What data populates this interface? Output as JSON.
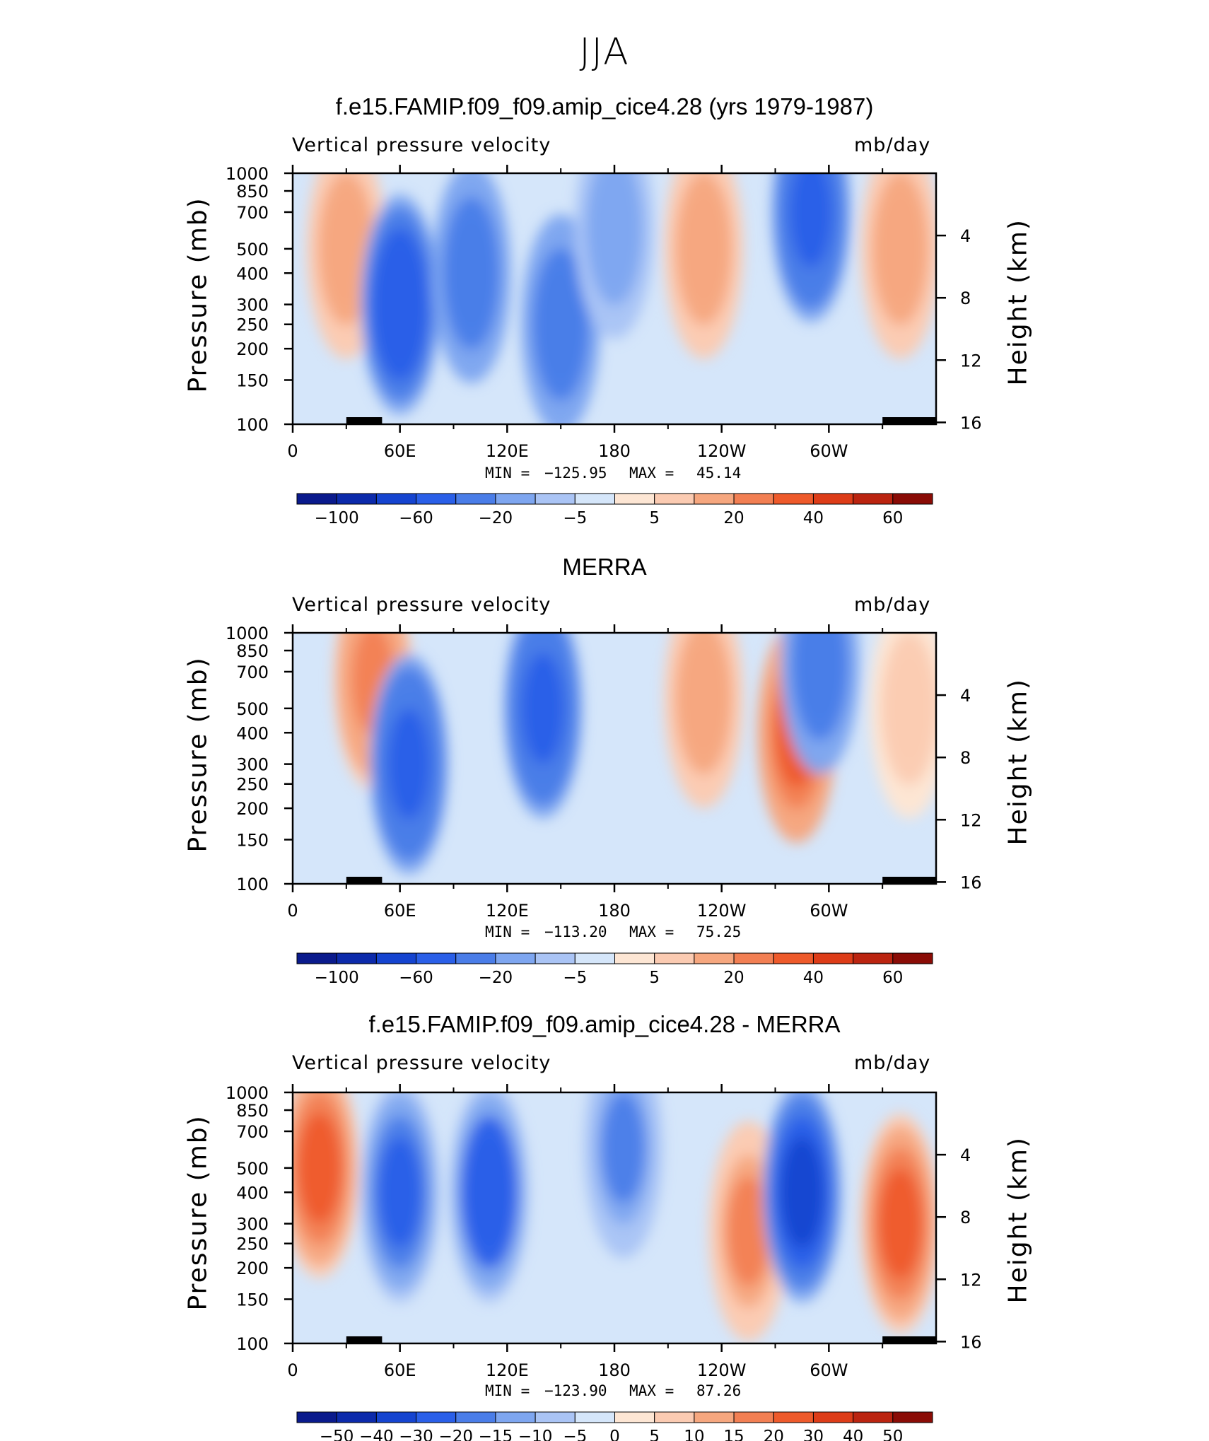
{
  "page_title": "JJA",
  "colors": {
    "main_scale": [
      "#0a1a8c",
      "#0c2aab",
      "#1544d0",
      "#2a5fe8",
      "#4a7de8",
      "#7ea6f0",
      "#aac4f5",
      "#d5e6fa",
      "#fde6d4",
      "#fbcbb2",
      "#f6a77f",
      "#f27f53",
      "#ee5a2b",
      "#dd3c18",
      "#bb2410",
      "#8a0c06"
    ],
    "diff_scale": [
      "#0a1a8c",
      "#0c2aab",
      "#1544d0",
      "#2a5fe8",
      "#4a7de8",
      "#7ea6f0",
      "#aac4f5",
      "#d5e6fa",
      "#fde6d4",
      "#fbcbb2",
      "#f6a77f",
      "#f27f53",
      "#ee5a2b",
      "#dd3c18",
      "#bb2410",
      "#8a0c06"
    ]
  },
  "panels": [
    {
      "title": "f.e15.FAMIP.f09_f09.amip_cice4.28 (yrs 1979-1987)",
      "left_label": "Vertical pressure velocity",
      "right_label": "mb/day",
      "ylabel": "Pressure (mb)",
      "y2label": "Height (km)",
      "min_label": "MIN =",
      "min_value": "−125.95",
      "max_label": "MAX =",
      "max_value": "45.14",
      "colorbar_labels": [
        "−100",
        "−60",
        "−20",
        "−5",
        "5",
        "20",
        "40",
        "60"
      ]
    },
    {
      "title": "MERRA",
      "left_label": "Vertical pressure velocity",
      "right_label": "mb/day",
      "ylabel": "Pressure (mb)",
      "y2label": "Height (km)",
      "min_label": "MIN =",
      "min_value": "−113.20",
      "max_label": "MAX =",
      "max_value": "75.25",
      "colorbar_labels": [
        "−100",
        "−60",
        "−20",
        "−5",
        "5",
        "20",
        "40",
        "60"
      ]
    },
    {
      "title": "f.e15.FAMIP.f09_f09.amip_cice4.28 - MERRA",
      "left_label": "Vertical pressure velocity",
      "right_label": "mb/day",
      "ylabel": "Pressure (mb)",
      "y2label": "Height (km)",
      "min_label": "MIN =",
      "min_value": "−123.90",
      "max_label": "MAX =",
      "max_value": "87.26",
      "colorbar_labels": [
        "−50",
        "−40",
        "−30",
        "−20",
        "−15",
        "−10",
        "−5",
        "0",
        "5",
        "10",
        "15",
        "20",
        "30",
        "40",
        "50"
      ]
    }
  ],
  "chart_data": [
    {
      "type": "heatmap",
      "title": "f.e15.FAMIP.f09_f09.amip_cice4.28 (yrs 1979-1987)",
      "xlabel": "",
      "ylabel": "Pressure (mb)",
      "y2label": "Height (km)",
      "x_ticks": [
        "0",
        "60E",
        "120E",
        "180",
        "120W",
        "60W"
      ],
      "x_range_deg": [
        0,
        360
      ],
      "y_ticks": [
        100,
        150,
        200,
        250,
        300,
        400,
        500,
        700,
        850,
        1000
      ],
      "y_range_mb": [
        1000,
        100
      ],
      "y_scale": "log",
      "y2_ticks": [
        4,
        8,
        12,
        16
      ],
      "colorbar_levels": [
        -100,
        -80,
        -60,
        -40,
        -20,
        -10,
        -5,
        0,
        5,
        10,
        20,
        30,
        40,
        50,
        60
      ],
      "min": -125.95,
      "max": 45.14,
      "features": [
        {
          "lon": 30,
          "p": 500,
          "value": 25
        },
        {
          "lon": 60,
          "p": 300,
          "value": -80
        },
        {
          "lon": 100,
          "p": 400,
          "value": -45
        },
        {
          "lon": 150,
          "p": 250,
          "value": -50
        },
        {
          "lon": 180,
          "p": 600,
          "value": -25
        },
        {
          "lon": 230,
          "p": 500,
          "value": 25
        },
        {
          "lon": 290,
          "p": 700,
          "value": -60
        },
        {
          "lon": 340,
          "p": 500,
          "value": 25
        }
      ]
    },
    {
      "type": "heatmap",
      "title": "MERRA",
      "xlabel": "",
      "ylabel": "Pressure (mb)",
      "y2label": "Height (km)",
      "x_ticks": [
        "0",
        "60E",
        "120E",
        "180",
        "120W",
        "60W"
      ],
      "x_range_deg": [
        0,
        360
      ],
      "y_ticks": [
        100,
        150,
        200,
        250,
        300,
        400,
        500,
        700,
        850,
        1000
      ],
      "y_range_mb": [
        1000,
        100
      ],
      "y_scale": "log",
      "y2_ticks": [
        4,
        8,
        12,
        16
      ],
      "colorbar_levels": [
        -100,
        -80,
        -60,
        -40,
        -20,
        -10,
        -5,
        0,
        5,
        10,
        20,
        30,
        40,
        50,
        60
      ],
      "min": -113.2,
      "max": 75.25,
      "features": [
        {
          "lon": 45,
          "p": 650,
          "value": 30
        },
        {
          "lon": 65,
          "p": 300,
          "value": -70
        },
        {
          "lon": 140,
          "p": 500,
          "value": -60
        },
        {
          "lon": 230,
          "p": 550,
          "value": 25
        },
        {
          "lon": 282,
          "p": 400,
          "value": 50
        },
        {
          "lon": 295,
          "p": 750,
          "value": -50
        },
        {
          "lon": 345,
          "p": 500,
          "value": 12
        }
      ]
    },
    {
      "type": "heatmap",
      "title": "f.e15.FAMIP.f09_f09.amip_cice4.28 - MERRA",
      "xlabel": "",
      "ylabel": "Pressure (mb)",
      "y2label": "Height (km)",
      "x_ticks": [
        "0",
        "60E",
        "120E",
        "180",
        "120W",
        "60W"
      ],
      "x_range_deg": [
        0,
        360
      ],
      "y_ticks": [
        100,
        150,
        200,
        250,
        300,
        400,
        500,
        700,
        850,
        1000
      ],
      "y_range_mb": [
        1000,
        100
      ],
      "y_scale": "log",
      "y2_ticks": [
        4,
        8,
        12,
        16
      ],
      "colorbar_levels": [
        -50,
        -40,
        -30,
        -20,
        -15,
        -10,
        -5,
        0,
        5,
        10,
        15,
        20,
        30,
        40,
        50
      ],
      "min": -123.9,
      "max": 87.26,
      "features": [
        {
          "lon": 15,
          "p": 500,
          "value": 30
        },
        {
          "lon": 60,
          "p": 400,
          "value": -30
        },
        {
          "lon": 110,
          "p": 400,
          "value": -40
        },
        {
          "lon": 185,
          "p": 600,
          "value": -25
        },
        {
          "lon": 255,
          "p": 280,
          "value": 25
        },
        {
          "lon": 285,
          "p": 400,
          "value": -45
        },
        {
          "lon": 340,
          "p": 300,
          "value": 30
        }
      ]
    }
  ]
}
